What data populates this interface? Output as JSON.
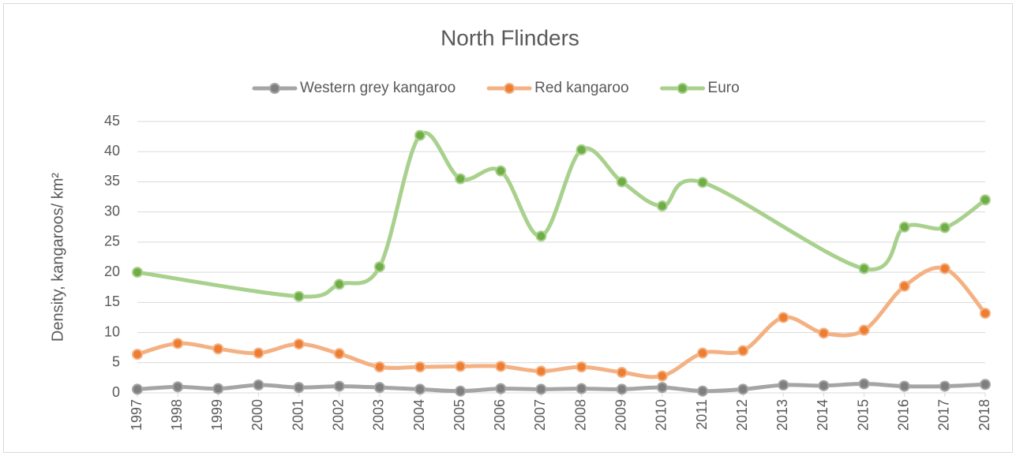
{
  "chart_data": {
    "type": "line",
    "title": "North Flinders",
    "ylabel": "Density, kangaroos/ km²",
    "xlim": [
      1997,
      2018
    ],
    "xticks": [
      1997,
      1998,
      1999,
      2000,
      2001,
      2002,
      2003,
      2004,
      2005,
      2006,
      2007,
      2008,
      2009,
      2010,
      2011,
      2012,
      2013,
      2014,
      2015,
      2016,
      2017,
      2018
    ],
    "ylim": [
      0,
      45
    ],
    "yticks": [
      0,
      5,
      10,
      15,
      20,
      25,
      30,
      35,
      40,
      45
    ],
    "grid": true,
    "legend": "top",
    "smooth": true,
    "series": [
      {
        "name": "Western grey kangaroo",
        "color": "#a5a5a5",
        "marker_color": "#7f7f7f",
        "x": [
          1997,
          1998,
          1999,
          2000,
          2001,
          2002,
          2003,
          2004,
          2005,
          2006,
          2007,
          2008,
          2009,
          2010,
          2011,
          2012,
          2013,
          2014,
          2015,
          2016,
          2017,
          2018
        ],
        "values": [
          0.6,
          1.0,
          0.7,
          1.3,
          0.9,
          1.1,
          0.9,
          0.6,
          0.3,
          0.7,
          0.6,
          0.7,
          0.6,
          0.9,
          0.3,
          0.6,
          1.3,
          1.2,
          1.5,
          1.1,
          1.1,
          1.4
        ]
      },
      {
        "name": "Red kangaroo",
        "color": "#f4b183",
        "marker_color": "#ed7d31",
        "x": [
          1997,
          1998,
          1999,
          2000,
          2001,
          2002,
          2003,
          2004,
          2005,
          2006,
          2007,
          2008,
          2009,
          2010,
          2011,
          2012,
          2013,
          2014,
          2015,
          2016,
          2017,
          2018
        ],
        "values": [
          6.4,
          8.2,
          7.3,
          6.6,
          8.1,
          6.5,
          4.3,
          4.3,
          4.4,
          4.4,
          3.6,
          4.3,
          3.4,
          2.8,
          6.6,
          7.0,
          12.5,
          9.9,
          10.4,
          17.7,
          20.6,
          13.2
        ]
      },
      {
        "name": "Euro",
        "color": "#a9d18e",
        "marker_color": "#70ad47",
        "x": [
          1997,
          2001,
          2002,
          2003,
          2004,
          2005,
          2006,
          2007,
          2008,
          2009,
          2010,
          2011,
          2015,
          2016,
          2017,
          2018
        ],
        "values": [
          20.0,
          16.0,
          18.0,
          20.9,
          42.7,
          35.5,
          36.8,
          26.0,
          40.3,
          35.0,
          31.0,
          34.9,
          20.6,
          27.5,
          27.4,
          32.0
        ]
      }
    ]
  }
}
